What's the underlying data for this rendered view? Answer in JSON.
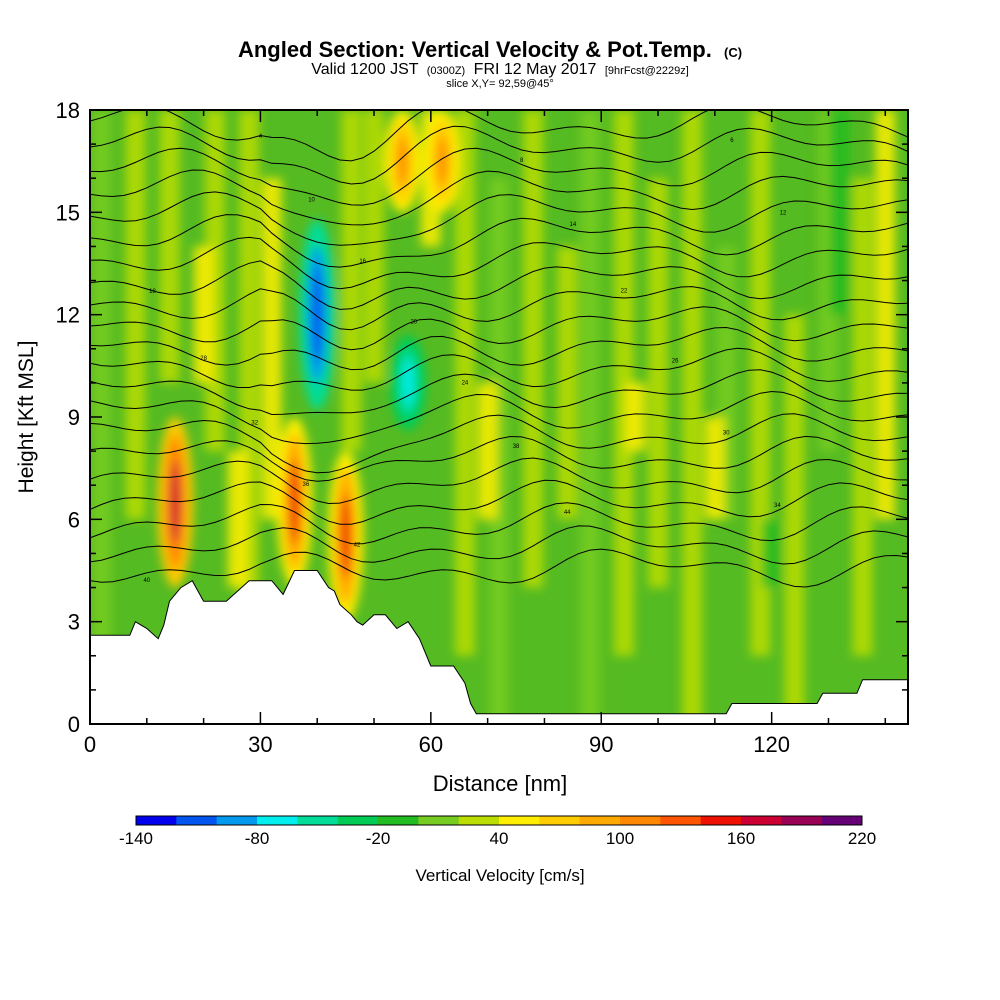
{
  "header": {
    "title": "Angled Section: Vertical Velocity & Pot.Temp.",
    "title_suffix": "(C)",
    "valid_prefix": "Valid 1200 JST",
    "valid_zulu": "(0300Z)",
    "valid_date": "FRI 12 May 2017",
    "valid_fcst": "[9hrFcst@2229z]",
    "slice": "slice X,Y= 92,59@45°"
  },
  "chart_data": {
    "type": "heatmap",
    "subtype": "vertical cross-section (filled contours with contour lines)",
    "title": "Angled Section: Vertical Velocity & Pot.Temp. (C)",
    "xlabel": "Distance [nm]",
    "ylabel": "Height [Kft MSL]",
    "xlim": [
      0,
      144
    ],
    "ylim": [
      0,
      18
    ],
    "x_ticks": [
      0,
      30,
      60,
      90,
      120
    ],
    "y_ticks": [
      0,
      3,
      6,
      9,
      12,
      15,
      18
    ],
    "colorbar": {
      "label": "Vertical Velocity [cm/s]",
      "min": -140,
      "max": 220,
      "step": 20,
      "tick_values": [
        -140,
        -80,
        -20,
        40,
        100,
        160,
        220
      ],
      "colors": [
        "#0000ee",
        "#0055ee",
        "#0099ee",
        "#00eeee",
        "#00dd99",
        "#00cc55",
        "#22bb22",
        "#77cc22",
        "#bbdd00",
        "#ffee00",
        "#ffcc00",
        "#ffaa00",
        "#ff8800",
        "#ff5500",
        "#ee1100",
        "#cc0033",
        "#990055",
        "#660077"
      ]
    },
    "terrain_profile": {
      "x": [
        0,
        4,
        7,
        8,
        10,
        12,
        13,
        14,
        16,
        18,
        19,
        20,
        22,
        24,
        26,
        28,
        30,
        32,
        34,
        36,
        38,
        40,
        42,
        43,
        44,
        46,
        47,
        48,
        50,
        52,
        54,
        56,
        58,
        60,
        62,
        64,
        66,
        67,
        68,
        70,
        80,
        90,
        100,
        112,
        113,
        128,
        129,
        135,
        136,
        144
      ],
      "y": [
        2.6,
        2.6,
        2.6,
        3.0,
        2.8,
        2.5,
        2.9,
        3.6,
        4.0,
        4.2,
        3.9,
        3.6,
        3.6,
        3.6,
        3.9,
        4.2,
        4.2,
        4.2,
        3.8,
        4.5,
        4.5,
        4.5,
        4.0,
        3.9,
        3.5,
        3.2,
        3.0,
        2.9,
        3.2,
        3.2,
        2.8,
        3.0,
        2.5,
        1.7,
        1.7,
        1.7,
        1.2,
        0.6,
        0.3,
        0.3,
        0.3,
        0.3,
        0.3,
        0.3,
        0.6,
        0.6,
        0.9,
        0.9,
        1.3,
        1.3
      ]
    },
    "updrafts": [
      {
        "x": 15,
        "height_range": [
          4,
          9
        ],
        "peak_cm_s": 160
      },
      {
        "x": 36,
        "height_range": [
          4,
          9
        ],
        "peak_cm_s": 140
      },
      {
        "x": 45,
        "height_range": [
          3,
          8
        ],
        "peak_cm_s": 140
      },
      {
        "x": 55,
        "height_range": [
          15,
          18
        ],
        "peak_cm_s": 100
      },
      {
        "x": 62,
        "height_range": [
          15,
          18
        ],
        "peak_cm_s": 100
      }
    ],
    "downdrafts": [
      {
        "x": 40,
        "height_range": [
          10,
          14
        ],
        "peak_cm_s": -120
      },
      {
        "x": 56,
        "height_range": [
          9,
          11
        ],
        "peak_cm_s": -80
      }
    ],
    "contour_labels": [
      "40",
      "42",
      "44",
      "34",
      "36",
      "38",
      "30",
      "32",
      "24",
      "26",
      "28",
      "20",
      "22",
      "18",
      "16",
      "14",
      "12",
      "10",
      "8",
      "6",
      "4"
    ]
  },
  "colors": {
    "frame": "#000000",
    "terrain": "#ffffff",
    "background_field": "#55bb22"
  }
}
